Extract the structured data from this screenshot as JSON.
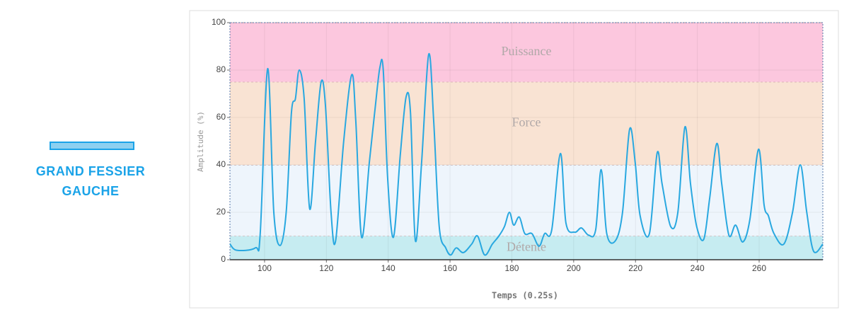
{
  "sidebar": {
    "title": "GRAND FESSIER GAUCHE"
  },
  "chart_data": {
    "type": "line",
    "x_label": "Temps (0.25s)",
    "y_label": "Amplitude (%)",
    "xlim": [
      88.8,
      280.6
    ],
    "ylim": [
      0,
      100
    ],
    "xticks": [
      100,
      120,
      140,
      160,
      180,
      200,
      220,
      240,
      260
    ],
    "yticks": [
      0,
      20,
      40,
      60,
      80,
      100
    ],
    "grid": true,
    "bands": [
      {
        "name": "Détente",
        "from": 0,
        "to": 10,
        "color": "#c6ecf1"
      },
      {
        "name": "",
        "from": 10,
        "to": 40,
        "color": "#eef5fc"
      },
      {
        "name": "Force",
        "from": 40,
        "to": 75,
        "color": "#f9e3d3"
      },
      {
        "name": "Puissance",
        "from": 75,
        "to": 100,
        "color": "#fcc7de"
      }
    ],
    "series": [
      {
        "color": "#29a8e0",
        "x": [
          88.8,
          91,
          97,
          98.6,
          101,
          103,
          105,
          107,
          108.7,
          110,
          111.2,
          112.8,
          114.6,
          116.5,
          118.3,
          119.7,
          121.5,
          123,
          125.6,
          128.2,
          129.5,
          131.4,
          133.9,
          135.7,
          137.3,
          138.4,
          139.8,
          141.7,
          143.9,
          145.8,
          147.2,
          148.8,
          150.8,
          153.1,
          154.7,
          156.5,
          158.6,
          160.2,
          162,
          164.3,
          167,
          168.9,
          171.2,
          173.7,
          175.8,
          177.6,
          179.2,
          180.6,
          182.4,
          184.2,
          186.5,
          188.8,
          190.6,
          192.9,
          195.7,
          197.5,
          200.3,
          202.5,
          204.8,
          207.1,
          208.9,
          210.7,
          213.5,
          215.8,
          218.1,
          219.9,
          221.5,
          224.5,
          227,
          228.6,
          231.4,
          233.7,
          236,
          237.8,
          239.8,
          242.1,
          244,
          246.3,
          247.9,
          250.2,
          252.4,
          254.7,
          257,
          259.8,
          261.6,
          263,
          264.8,
          268,
          270.8,
          273.3,
          275.4,
          277.6,
          280.6
        ],
        "values": [
          6.6,
          4,
          5,
          11,
          80.6,
          20,
          6,
          20,
          62,
          68,
          80,
          68,
          21.5,
          50,
          75,
          65,
          20,
          8,
          50,
          78,
          59,
          9.5,
          41,
          63,
          81,
          80,
          35,
          9.5,
          44,
          68.7,
          62,
          8,
          41,
          86.6,
          59,
          14,
          5,
          2,
          5,
          3,
          6.6,
          10,
          2,
          6.6,
          10,
          14,
          20,
          14.6,
          18,
          11,
          11,
          5.7,
          11,
          12.5,
          44.8,
          15.5,
          11.6,
          13.4,
          10.4,
          12.5,
          38,
          11,
          8,
          20,
          55,
          41,
          18.5,
          11,
          45,
          32,
          14,
          20,
          56,
          32,
          14,
          8.7,
          26,
          49,
          32,
          10.4,
          14.6,
          7.5,
          17,
          46.6,
          23,
          18.5,
          11,
          6.6,
          20,
          40,
          20,
          3.6,
          6.6
        ]
      }
    ]
  }
}
